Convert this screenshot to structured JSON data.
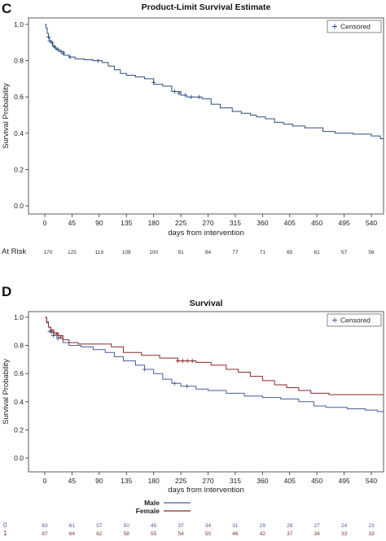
{
  "chart_data": [
    {
      "panel": "C",
      "type": "line",
      "title": "Product-Limit Survival Estimate",
      "xlabel": "days from intervention",
      "ylabel": "Survival Probability",
      "xlim": [
        0,
        560
      ],
      "ylim": [
        0.0,
        1.0
      ],
      "xticks": [
        0,
        45,
        90,
        135,
        180,
        225,
        270,
        315,
        360,
        405,
        450,
        495,
        540
      ],
      "yticks": [
        "0.0",
        "0.2",
        "0.4",
        "0.6",
        "0.8",
        "1.0"
      ],
      "grid": false,
      "legend": {
        "entries": [
          "Censored"
        ],
        "placement": "top-right",
        "symbol": "+"
      },
      "series": [
        {
          "color": "#2b4c7e",
          "steps": [
            [
              0,
              1.0
            ],
            [
              2,
              0.98
            ],
            [
              4,
              0.95
            ],
            [
              6,
              0.93
            ],
            [
              8,
              0.91
            ],
            [
              10,
              0.9
            ],
            [
              13,
              0.88
            ],
            [
              16,
              0.87
            ],
            [
              20,
              0.86
            ],
            [
              25,
              0.85
            ],
            [
              32,
              0.83
            ],
            [
              40,
              0.82
            ],
            [
              50,
              0.81
            ],
            [
              65,
              0.805
            ],
            [
              80,
              0.8
            ],
            [
              95,
              0.79
            ],
            [
              105,
              0.77
            ],
            [
              115,
              0.75
            ],
            [
              125,
              0.73
            ],
            [
              135,
              0.72
            ],
            [
              150,
              0.71
            ],
            [
              165,
              0.7
            ],
            [
              180,
              0.67
            ],
            [
              195,
              0.66
            ],
            [
              210,
              0.63
            ],
            [
              225,
              0.61
            ],
            [
              235,
              0.6
            ],
            [
              260,
              0.59
            ],
            [
              275,
              0.56
            ],
            [
              290,
              0.54
            ],
            [
              310,
              0.52
            ],
            [
              325,
              0.51
            ],
            [
              340,
              0.5
            ],
            [
              350,
              0.49
            ],
            [
              365,
              0.48
            ],
            [
              380,
              0.46
            ],
            [
              395,
              0.45
            ],
            [
              410,
              0.44
            ],
            [
              430,
              0.43
            ],
            [
              460,
              0.41
            ],
            [
              480,
              0.4
            ],
            [
              510,
              0.395
            ],
            [
              540,
              0.385
            ],
            [
              555,
              0.37
            ],
            [
              560,
              0.37
            ]
          ],
          "censored": [
            [
              6,
              0.93
            ],
            [
              8,
              0.91
            ],
            [
              12,
              0.9
            ],
            [
              15,
              0.88
            ],
            [
              18,
              0.87
            ],
            [
              22,
              0.86
            ],
            [
              27,
              0.85
            ],
            [
              30,
              0.84
            ],
            [
              42,
              0.82
            ],
            [
              88,
              0.8
            ],
            [
              180,
              0.68
            ],
            [
              215,
              0.63
            ],
            [
              222,
              0.62
            ],
            [
              232,
              0.61
            ],
            [
              242,
              0.6
            ],
            [
              255,
              0.6
            ]
          ]
        }
      ],
      "at_risk": {
        "label": "At Risk",
        "x": [
          0,
          45,
          90,
          135,
          180,
          225,
          270,
          315,
          360,
          405,
          450,
          495,
          540
        ],
        "values": [
          170,
          125,
          119,
          108,
          100,
          91,
          84,
          77,
          71,
          65,
          61,
          57,
          56
        ]
      }
    },
    {
      "panel": "D",
      "type": "line",
      "title": "Survival",
      "xlabel": "days from intervention",
      "ylabel": "Survival Probability",
      "xlim": [
        0,
        560
      ],
      "ylim": [
        0.0,
        1.0
      ],
      "xticks": [
        0,
        45,
        90,
        135,
        180,
        225,
        270,
        315,
        360,
        405,
        450,
        495,
        540
      ],
      "yticks": [
        "0.0",
        "0.2",
        "0.4",
        "0.6",
        "0.8",
        "1.0"
      ],
      "grid": false,
      "legend": {
        "entries": [
          "Censored"
        ],
        "placement": "top-right",
        "symbol": "+"
      },
      "group_legend": {
        "entries": [
          "Male",
          "Female"
        ],
        "placement": "bottom"
      },
      "series": [
        {
          "name": "Male",
          "color": "#4a5a99",
          "steps": [
            [
              0,
              1.0
            ],
            [
              3,
              0.97
            ],
            [
              6,
              0.93
            ],
            [
              10,
              0.89
            ],
            [
              15,
              0.87
            ],
            [
              20,
              0.85
            ],
            [
              30,
              0.82
            ],
            [
              40,
              0.8
            ],
            [
              60,
              0.79
            ],
            [
              80,
              0.77
            ],
            [
              100,
              0.75
            ],
            [
              115,
              0.72
            ],
            [
              130,
              0.69
            ],
            [
              150,
              0.66
            ],
            [
              165,
              0.63
            ],
            [
              180,
              0.6
            ],
            [
              195,
              0.56
            ],
            [
              210,
              0.53
            ],
            [
              225,
              0.51
            ],
            [
              250,
              0.49
            ],
            [
              270,
              0.48
            ],
            [
              300,
              0.46
            ],
            [
              330,
              0.44
            ],
            [
              360,
              0.43
            ],
            [
              390,
              0.42
            ],
            [
              420,
              0.4
            ],
            [
              445,
              0.37
            ],
            [
              465,
              0.36
            ],
            [
              500,
              0.35
            ],
            [
              530,
              0.34
            ],
            [
              550,
              0.33
            ],
            [
              560,
              0.32
            ]
          ],
          "censored": [
            [
              8,
              0.9
            ],
            [
              14,
              0.87
            ],
            [
              22,
              0.85
            ],
            [
              165,
              0.63
            ],
            [
              215,
              0.53
            ],
            [
              235,
              0.51
            ]
          ]
        },
        {
          "name": "Female",
          "color": "#8b2a2a",
          "steps": [
            [
              0,
              1.0
            ],
            [
              3,
              0.96
            ],
            [
              6,
              0.93
            ],
            [
              10,
              0.91
            ],
            [
              15,
              0.89
            ],
            [
              22,
              0.87
            ],
            [
              30,
              0.84
            ],
            [
              40,
              0.82
            ],
            [
              55,
              0.81
            ],
            [
              110,
              0.79
            ],
            [
              130,
              0.75
            ],
            [
              160,
              0.73
            ],
            [
              190,
              0.71
            ],
            [
              220,
              0.69
            ],
            [
              250,
              0.68
            ],
            [
              275,
              0.66
            ],
            [
              300,
              0.63
            ],
            [
              320,
              0.61
            ],
            [
              340,
              0.58
            ],
            [
              360,
              0.55
            ],
            [
              380,
              0.52
            ],
            [
              400,
              0.5
            ],
            [
              420,
              0.48
            ],
            [
              440,
              0.46
            ],
            [
              470,
              0.45
            ],
            [
              500,
              0.45
            ],
            [
              560,
              0.45
            ]
          ],
          "censored": [
            [
              12,
              0.9
            ],
            [
              20,
              0.88
            ],
            [
              26,
              0.86
            ],
            [
              220,
              0.69
            ],
            [
              228,
              0.69
            ],
            [
              236,
              0.69
            ],
            [
              244,
              0.69
            ]
          ]
        }
      ],
      "at_risk": {
        "x": [
          0,
          45,
          90,
          135,
          180,
          225,
          270,
          315,
          360,
          405,
          450,
          495,
          540
        ],
        "rows": [
          {
            "label": "0",
            "values": [
              83,
              61,
              57,
              50,
              45,
              37,
              34,
              31,
              29,
              28,
              27,
              24,
              23
            ]
          },
          {
            "label": "1",
            "values": [
              87,
              64,
              62,
              58,
              55,
              54,
              50,
              46,
              42,
              37,
              34,
              33,
              33
            ]
          }
        ]
      }
    }
  ]
}
